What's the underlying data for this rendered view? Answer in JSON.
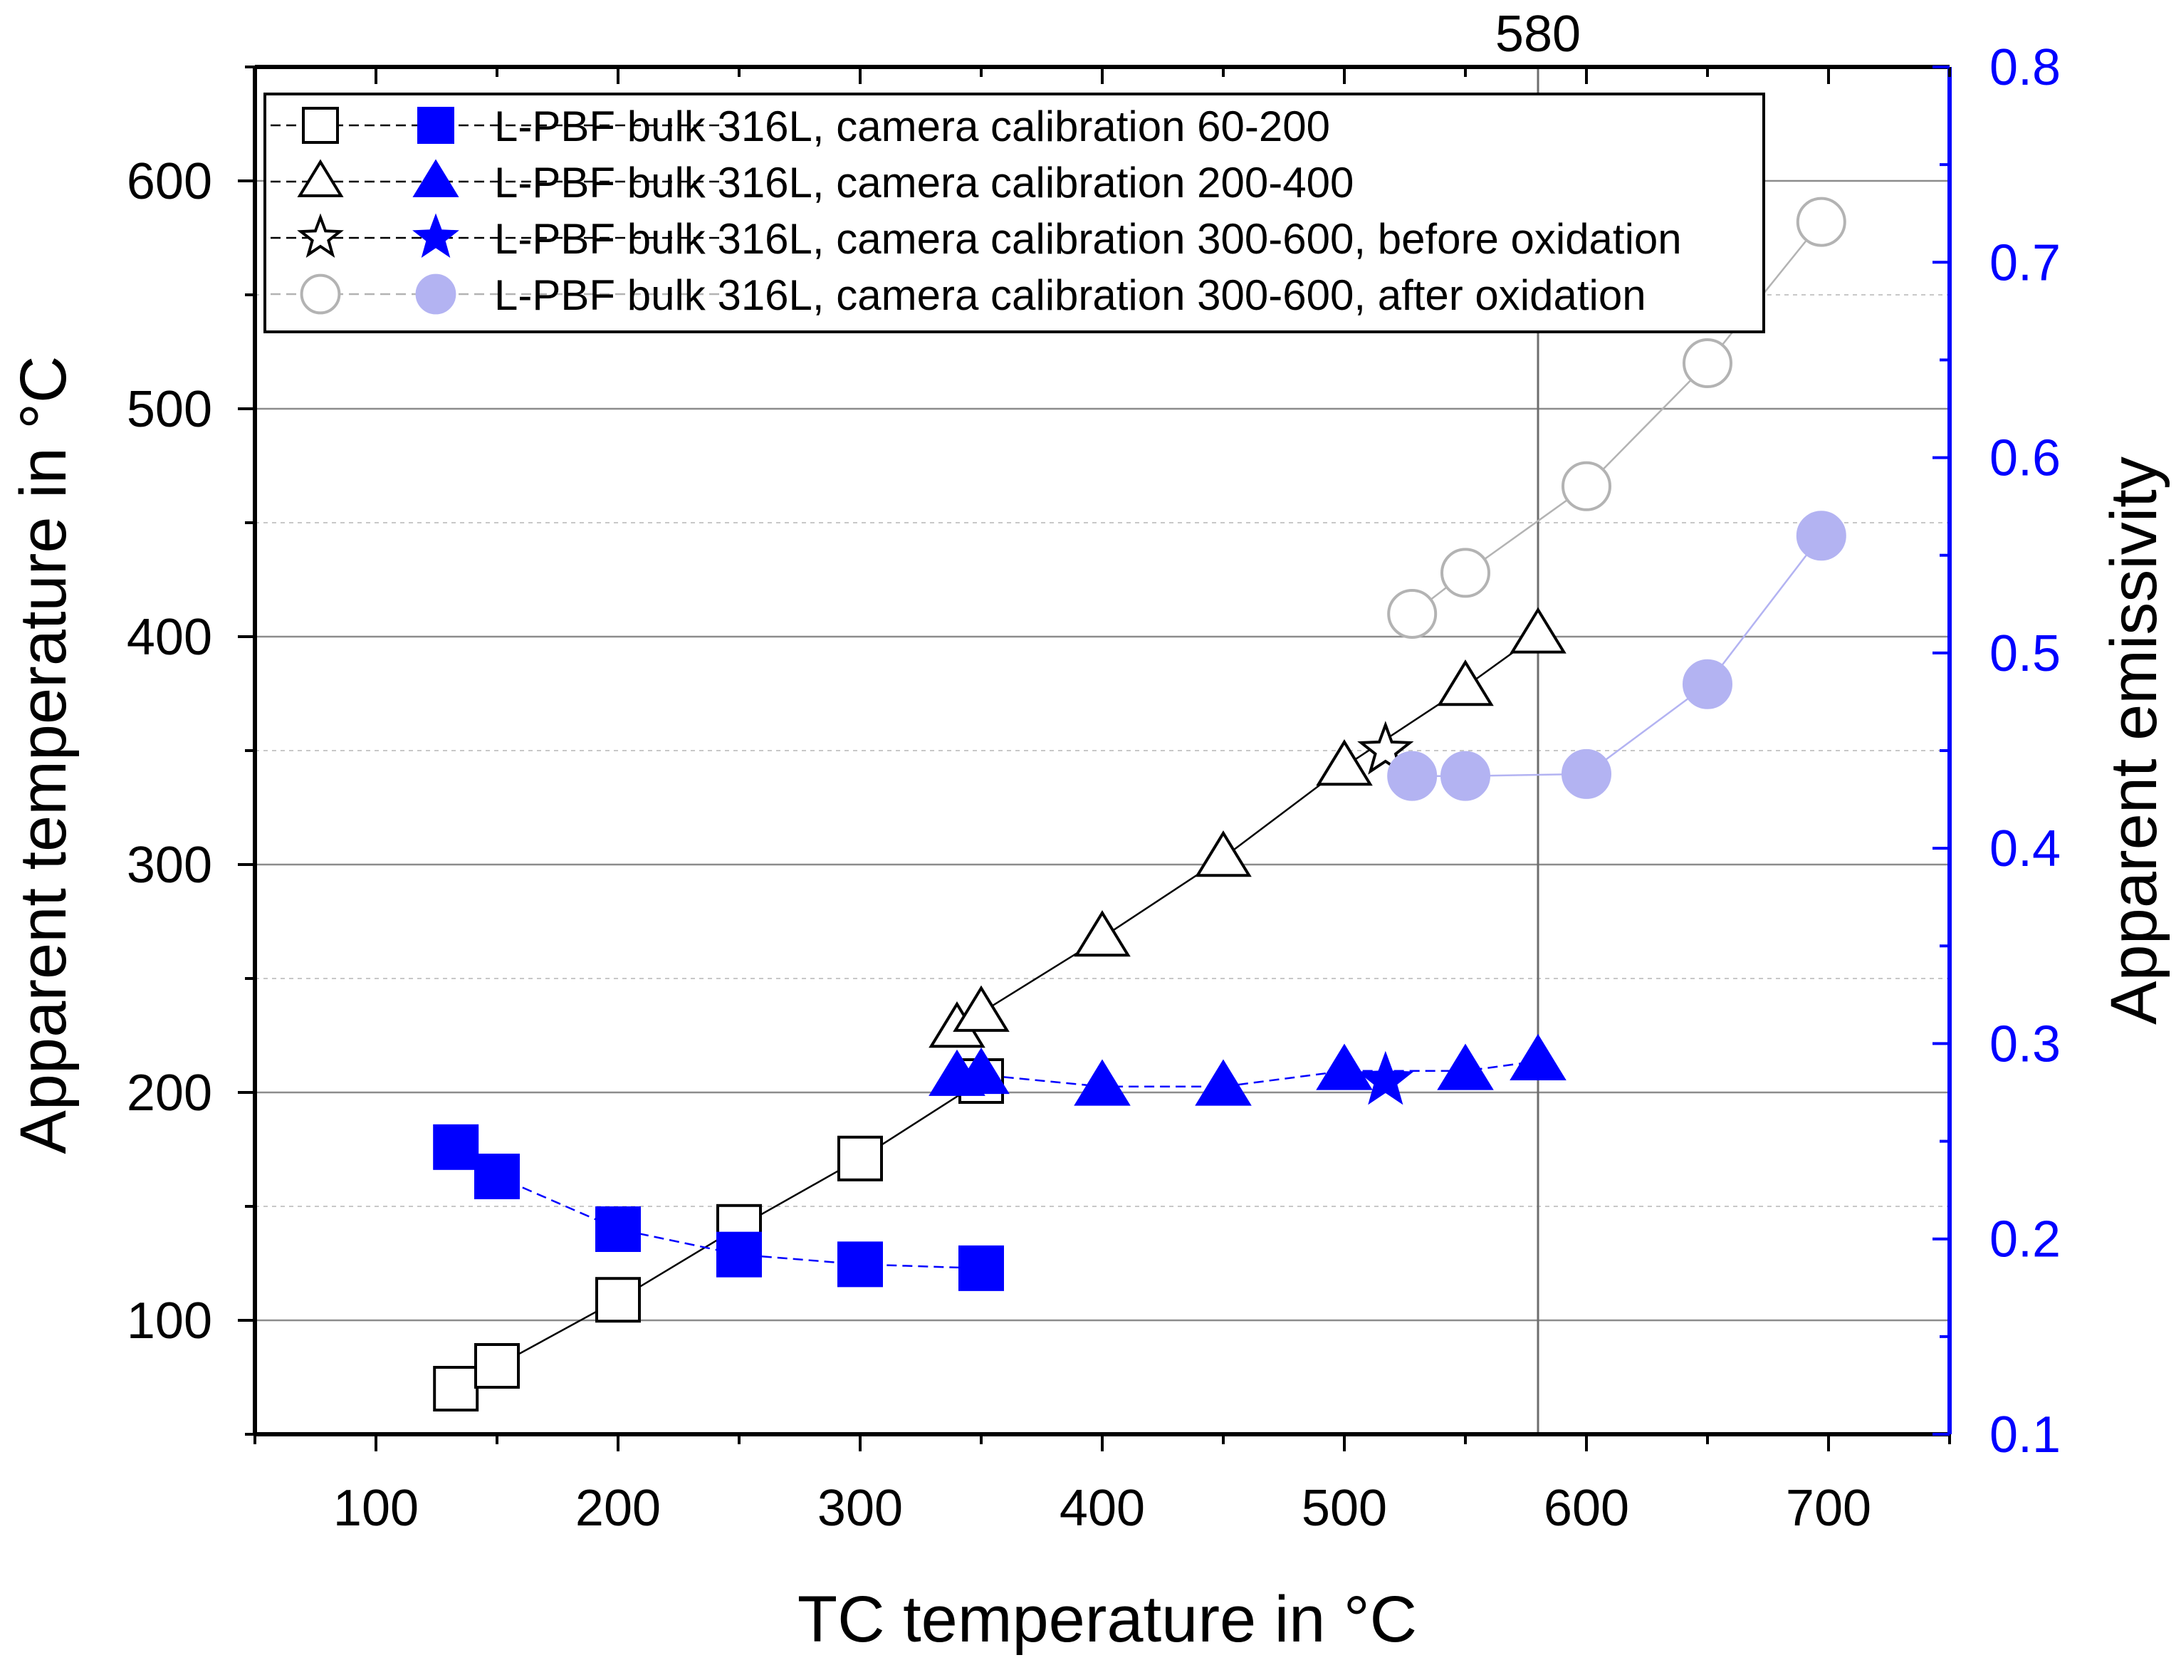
{
  "chart_data": {
    "type": "scatter",
    "xlabel": "TC temperature in °C",
    "ylabel_left": "Apparent temperature in °C",
    "ylabel_right": "Apparent emissivity",
    "xlim": [
      50,
      750
    ],
    "ylim_left": [
      50,
      650
    ],
    "ylim_right": [
      0.1,
      0.8
    ],
    "xticks": [
      100,
      200,
      300,
      400,
      500,
      600,
      700
    ],
    "yticks_left": [
      100,
      200,
      300,
      400,
      500,
      600
    ],
    "yticks_right": [
      0.1,
      0.2,
      0.3,
      0.4,
      0.5,
      0.6,
      0.7,
      0.8
    ],
    "grid": true,
    "legend_position": "top-left",
    "annotation": {
      "x": 580,
      "label": "580"
    },
    "series": [
      {
        "name": "L-PBF bulk 316L, camera calibration 60-200",
        "marker": "square",
        "color": "#0000ff",
        "open_color": "#000000",
        "x": [
          133,
          150,
          200,
          250,
          300,
          350
        ],
        "apparent_temperature": [
          70,
          80,
          109,
          141,
          171,
          205
        ],
        "apparent_emissivity": [
          0.247,
          0.232,
          0.205,
          0.192,
          0.187,
          0.185
        ]
      },
      {
        "name": "L-PBF bulk 316L, camera calibration 200-400",
        "marker": "triangle",
        "color": "#0000ff",
        "open_color": "#000000",
        "x": [
          340,
          350,
          400,
          450,
          500,
          550,
          580
        ],
        "apparent_temperature": [
          228,
          235,
          268,
          303,
          343,
          378,
          401
        ],
        "apparent_emissivity": [
          0.283,
          0.284,
          0.278,
          0.278,
          0.286,
          0.286,
          0.291
        ]
      },
      {
        "name": "L-PBF bulk 316L, camera calibration 300-600, before oxidation",
        "marker": "star",
        "color": "#0000ff",
        "open_color": "#000000",
        "x": [
          517
        ],
        "apparent_temperature": [
          350
        ],
        "apparent_emissivity": [
          0.281
        ]
      },
      {
        "name": "L-PBF bulk 316L, camera calibration 300-600, after oxidation",
        "marker": "circle",
        "color": "#b3b3f2",
        "open_color": "#b3b3b3",
        "x": [
          528,
          550,
          600,
          650,
          697
        ],
        "apparent_temperature": [
          410,
          428,
          466,
          520,
          582
        ],
        "apparent_emissivity": [
          0.437,
          0.437,
          0.438,
          0.484,
          0.56
        ]
      }
    ]
  }
}
